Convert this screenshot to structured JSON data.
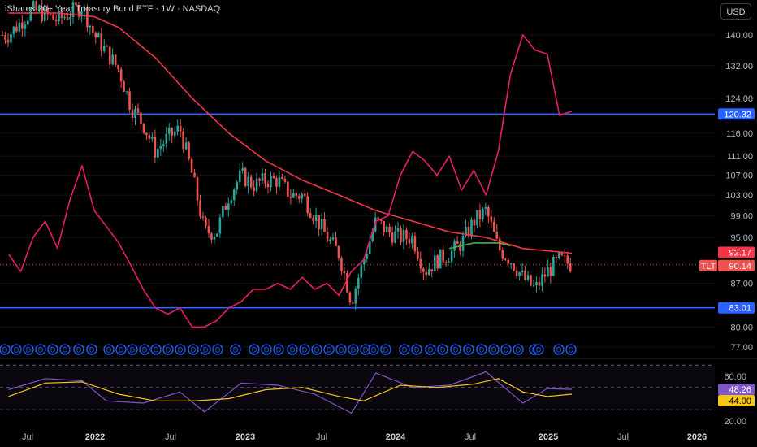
{
  "header": {
    "title": "iShares 20+ Year Treasury Bond ETF · 1W · NASDAQ",
    "currency_button": "USD"
  },
  "colors": {
    "up": "#26a69a",
    "down": "#ef5350",
    "sma": "#f23645",
    "overlay": "#e91e63",
    "hline": "#2962ff",
    "rsi": "#7e57c2",
    "rsi_ma": "#f5c518",
    "green_ma": "#4caf50"
  },
  "chart_data": [
    {
      "type": "candlestick",
      "symbol": "TLT",
      "x_tick_labels": [
        "Jul",
        "2022",
        "Jul",
        "2023",
        "Jul",
        "2024",
        "Jul",
        "2025",
        "Jul",
        "2026"
      ],
      "x_tick_bold": [
        false,
        true,
        false,
        true,
        false,
        true,
        false,
        true,
        false,
        true
      ],
      "y_tick_labels": [
        "140.00",
        "132.00",
        "124.00",
        "116.00",
        "111.00",
        "107.00",
        "103.00",
        "99.00",
        "95.00",
        "87.00",
        "80.00",
        "77.00"
      ],
      "y_scale": "log",
      "horizontal_lines": [
        {
          "value": 120.32,
          "label": "120.32"
        },
        {
          "value": 83.01,
          "label": "83.01"
        }
      ],
      "price_labels": [
        {
          "name": "sma",
          "value": "92.17"
        },
        {
          "name": "last",
          "symbol": "TLT",
          "value": "90.14"
        }
      ],
      "close_series": [
        {
          "t": "2021-06",
          "close": 140
        },
        {
          "t": "2021-08",
          "close": 147
        },
        {
          "t": "2021-10",
          "close": 144
        },
        {
          "t": "2021-12",
          "close": 148
        },
        {
          "t": "2022-01",
          "close": 140
        },
        {
          "t": "2022-03",
          "close": 131
        },
        {
          "t": "2022-04",
          "close": 122
        },
        {
          "t": "2022-05",
          "close": 118
        },
        {
          "t": "2022-06",
          "close": 112
        },
        {
          "t": "2022-07",
          "close": 115
        },
        {
          "t": "2022-08",
          "close": 117
        },
        {
          "t": "2022-09",
          "close": 107
        },
        {
          "t": "2022-10",
          "close": 96
        },
        {
          "t": "2022-11",
          "close": 96
        },
        {
          "t": "2022-12",
          "close": 103
        },
        {
          "t": "2023-01",
          "close": 107
        },
        {
          "t": "2023-02",
          "close": 105
        },
        {
          "t": "2023-03",
          "close": 106
        },
        {
          "t": "2023-04",
          "close": 106
        },
        {
          "t": "2023-05",
          "close": 103
        },
        {
          "t": "2023-06",
          "close": 103
        },
        {
          "t": "2023-07",
          "close": 99
        },
        {
          "t": "2023-08",
          "close": 95
        },
        {
          "t": "2023-09",
          "close": 92
        },
        {
          "t": "2023-10",
          "close": 84
        },
        {
          "t": "2023-11",
          "close": 91
        },
        {
          "t": "2023-12",
          "close": 98
        },
        {
          "t": "2024-01",
          "close": 96
        },
        {
          "t": "2024-02",
          "close": 95
        },
        {
          "t": "2024-03",
          "close": 95
        },
        {
          "t": "2024-04",
          "close": 89
        },
        {
          "t": "2024-05",
          "close": 91
        },
        {
          "t": "2024-06",
          "close": 92
        },
        {
          "t": "2024-07",
          "close": 94
        },
        {
          "t": "2024-08",
          "close": 98
        },
        {
          "t": "2024-09",
          "close": 100
        },
        {
          "t": "2024-10",
          "close": 93
        },
        {
          "t": "2024-11",
          "close": 91
        },
        {
          "t": "2024-12",
          "close": 88
        },
        {
          "t": "2025-01",
          "close": 86
        },
        {
          "t": "2025-02",
          "close": 89
        },
        {
          "t": "2025-03",
          "close": 91
        },
        {
          "t": "2025-04",
          "close": 90.14
        }
      ],
      "sma_series": [
        {
          "t": "2021-06",
          "value": 146
        },
        {
          "t": "2021-10",
          "value": 146
        },
        {
          "t": "2022-01",
          "value": 145
        },
        {
          "t": "2022-03",
          "value": 142
        },
        {
          "t": "2022-06",
          "value": 134
        },
        {
          "t": "2022-09",
          "value": 124
        },
        {
          "t": "2022-12",
          "value": 116
        },
        {
          "t": "2023-03",
          "value": 110
        },
        {
          "t": "2023-06",
          "value": 106
        },
        {
          "t": "2023-09",
          "value": 103
        },
        {
          "t": "2023-12",
          "value": 100
        },
        {
          "t": "2024-03",
          "value": 98
        },
        {
          "t": "2024-06",
          "value": 96
        },
        {
          "t": "2024-09",
          "value": 95
        },
        {
          "t": "2024-12",
          "value": 93
        },
        {
          "t": "2025-04",
          "value": 92.17
        }
      ],
      "green_ma_series": [
        {
          "t": "2024-06",
          "value": 93
        },
        {
          "t": "2024-08",
          "value": 94
        },
        {
          "t": "2024-10",
          "value": 94
        },
        {
          "t": "2024-11",
          "value": 93.5
        }
      ],
      "overlay_series": [
        {
          "t": "2021-06",
          "value": 92
        },
        {
          "t": "2021-07",
          "value": 89
        },
        {
          "t": "2021-08",
          "value": 95
        },
        {
          "t": "2021-09",
          "value": 98
        },
        {
          "t": "2021-10",
          "value": 93
        },
        {
          "t": "2021-11",
          "value": 102
        },
        {
          "t": "2021-12",
          "value": 109
        },
        {
          "t": "2022-01",
          "value": 100
        },
        {
          "t": "2022-02",
          "value": 97
        },
        {
          "t": "2022-03",
          "value": 94
        },
        {
          "t": "2022-04",
          "value": 90
        },
        {
          "t": "2022-05",
          "value": 86
        },
        {
          "t": "2022-06",
          "value": 83
        },
        {
          "t": "2022-07",
          "value": 82
        },
        {
          "t": "2022-08",
          "value": 83
        },
        {
          "t": "2022-09",
          "value": 80
        },
        {
          "t": "2022-10",
          "value": 80
        },
        {
          "t": "2022-11",
          "value": 81
        },
        {
          "t": "2022-12",
          "value": 83
        },
        {
          "t": "2023-01",
          "value": 84
        },
        {
          "t": "2023-02",
          "value": 86
        },
        {
          "t": "2023-03",
          "value": 86
        },
        {
          "t": "2023-04",
          "value": 87
        },
        {
          "t": "2023-05",
          "value": 86
        },
        {
          "t": "2023-06",
          "value": 88
        },
        {
          "t": "2023-07",
          "value": 86
        },
        {
          "t": "2023-08",
          "value": 87
        },
        {
          "t": "2023-09",
          "value": 85
        },
        {
          "t": "2023-10",
          "value": 89
        },
        {
          "t": "2023-11",
          "value": 91
        },
        {
          "t": "2023-12",
          "value": 98
        },
        {
          "t": "2024-01",
          "value": 99
        },
        {
          "t": "2024-02",
          "value": 107
        },
        {
          "t": "2024-03",
          "value": 112
        },
        {
          "t": "2024-04",
          "value": 110
        },
        {
          "t": "2024-05",
          "value": 107
        },
        {
          "t": "2024-06",
          "value": 111
        },
        {
          "t": "2024-07",
          "value": 104
        },
        {
          "t": "2024-08",
          "value": 108
        },
        {
          "t": "2024-09",
          "value": 103
        },
        {
          "t": "2024-10",
          "value": 112
        },
        {
          "t": "2024-11",
          "value": 130
        },
        {
          "t": "2024-12",
          "value": 140
        },
        {
          "t": "2025-01",
          "value": 136
        },
        {
          "t": "2025-02",
          "value": 135
        },
        {
          "t": "2025-03",
          "value": 120
        },
        {
          "t": "2025-04",
          "value": 121
        }
      ],
      "dividend_marker": "D"
    },
    {
      "type": "line",
      "name": "RSI",
      "y_tick_labels": [
        "60.00",
        "20.00"
      ],
      "value_labels": [
        {
          "series": "rsi",
          "value": "48.26"
        },
        {
          "series": "rsi_ma",
          "value": "44.00"
        }
      ],
      "band": [
        30,
        70
      ],
      "rsi_series": [
        {
          "t": "2021-06",
          "value": 48
        },
        {
          "t": "2021-09",
          "value": 58
        },
        {
          "t": "2021-12",
          "value": 56
        },
        {
          "t": "2022-02",
          "value": 38
        },
        {
          "t": "2022-05",
          "value": 36
        },
        {
          "t": "2022-08",
          "value": 46
        },
        {
          "t": "2022-10",
          "value": 28
        },
        {
          "t": "2023-01",
          "value": 54
        },
        {
          "t": "2023-04",
          "value": 52
        },
        {
          "t": "2023-07",
          "value": 44
        },
        {
          "t": "2023-10",
          "value": 27
        },
        {
          "t": "2023-12",
          "value": 63
        },
        {
          "t": "2024-03",
          "value": 50
        },
        {
          "t": "2024-06",
          "value": 52
        },
        {
          "t": "2024-09",
          "value": 64
        },
        {
          "t": "2024-12",
          "value": 36
        },
        {
          "t": "2025-02",
          "value": 49
        },
        {
          "t": "2025-04",
          "value": 48.26
        }
      ],
      "rsi_ma_series": [
        {
          "t": "2021-06",
          "value": 42
        },
        {
          "t": "2021-09",
          "value": 54
        },
        {
          "t": "2021-12",
          "value": 55
        },
        {
          "t": "2022-03",
          "value": 44
        },
        {
          "t": "2022-06",
          "value": 38
        },
        {
          "t": "2022-09",
          "value": 38
        },
        {
          "t": "2022-12",
          "value": 40
        },
        {
          "t": "2023-03",
          "value": 48
        },
        {
          "t": "2023-06",
          "value": 50
        },
        {
          "t": "2023-09",
          "value": 42
        },
        {
          "t": "2023-11",
          "value": 38
        },
        {
          "t": "2024-02",
          "value": 52
        },
        {
          "t": "2024-05",
          "value": 50
        },
        {
          "t": "2024-08",
          "value": 53
        },
        {
          "t": "2024-10",
          "value": 58
        },
        {
          "t": "2024-12",
          "value": 46
        },
        {
          "t": "2025-02",
          "value": 42
        },
        {
          "t": "2025-04",
          "value": 44
        }
      ]
    }
  ]
}
